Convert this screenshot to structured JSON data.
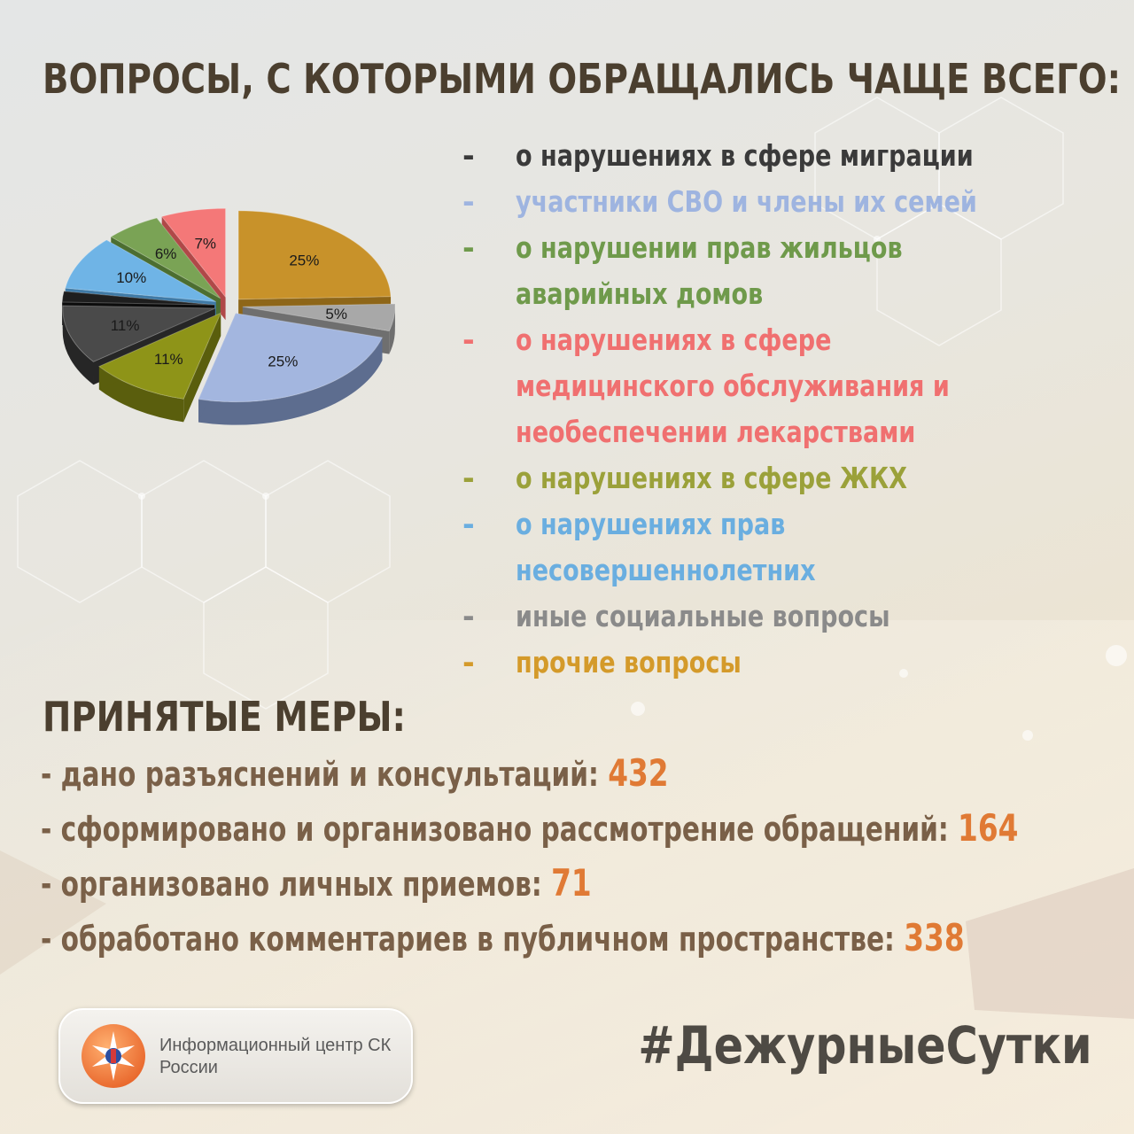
{
  "title": "ВОПРОСЫ, С КОТОРЫМИ ОБРАЩАЛИСЬ ЧАЩЕ ВСЕГО:",
  "legend": [
    {
      "dash": "-",
      "text": "о нарушениях в сфере миграции",
      "color": "#3a3a3a",
      "dash_color": "#3a3a3a"
    },
    {
      "dash": "-",
      "text": "участники СВО и члены их семей",
      "color": "#9eb4e0",
      "dash_color": "#9eb4e0"
    },
    {
      "dash": "-",
      "text": "о нарушении прав жильцов аварийных домов",
      "color": "#6f9a4b",
      "dash_color": "#6f9a4b"
    },
    {
      "dash": "-",
      "text": "о нарушениях в сфере медицинского обслуживания и необеспечении лекарствами",
      "color": "#f07070",
      "dash_color": "#f07070"
    },
    {
      "dash": "-",
      "text": "о нарушениях в сфере ЖКХ",
      "color": "#9ba13a",
      "dash_color": "#9ba13a"
    },
    {
      "dash": "-",
      "text": "о нарушениях прав несовершеннолетних",
      "color": "#6aaee0",
      "dash_color": "#6aaee0"
    },
    {
      "dash": "-",
      "text": "иные социальные вопросы",
      "color": "#8a8a8a",
      "dash_color": "#8a8a8a"
    },
    {
      "dash": "-",
      "text": "прочие вопросы",
      "color": "#d49a2a",
      "dash_color": "#d49a2a"
    }
  ],
  "chart_data": {
    "type": "pie",
    "slices": [
      {
        "label": "25%",
        "value": 25,
        "color": "#c8922a",
        "dark": "#8e6618"
      },
      {
        "label": "5%",
        "value": 5,
        "color": "#a8a8a8",
        "dark": "#6f6f6f"
      },
      {
        "label": "25%",
        "value": 25,
        "color": "#a3b6df",
        "dark": "#5d6d8f"
      },
      {
        "label": "11%",
        "value": 11,
        "color": "#8e9418",
        "dark": "#5a5e0d"
      },
      {
        "label": "11%",
        "value": 11,
        "color": "#4a4a4a",
        "dark": "#262626"
      },
      {
        "label": "",
        "value": 2,
        "color": "#1e1e1e",
        "dark": "#0c0c0c"
      },
      {
        "label": "10%",
        "value": 10,
        "color": "#6fb4e6",
        "dark": "#3f7aa6"
      },
      {
        "label": "6%",
        "value": 6,
        "color": "#7aa355",
        "dark": "#4c6e31"
      },
      {
        "label": "7%",
        "value": 7,
        "color": "#f47878",
        "dark": "#b04848"
      }
    ]
  },
  "measures_title": "ПРИНЯТЫЕ МЕРЫ:",
  "measures": [
    {
      "text": "- дано разъяснений и консультаций: ",
      "value": "432"
    },
    {
      "text": "- сформировано и организовано рассмотрение обращений: ",
      "value": "164"
    },
    {
      "text": "- организовано личных приемов: ",
      "value": "71"
    },
    {
      "text": "- обработано комментариев в публичном пространстве: ",
      "value": "338"
    }
  ],
  "logo_text": "Информационный центр СК России",
  "hashtag": "#ДежурныеСутки"
}
